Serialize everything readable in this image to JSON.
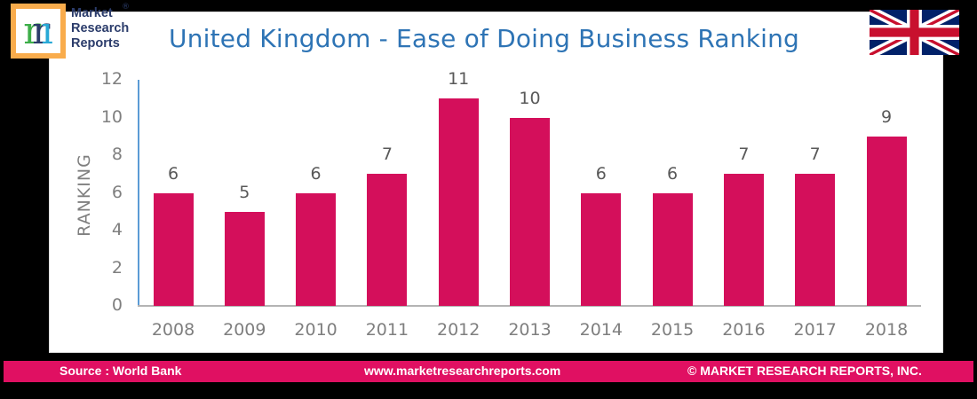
{
  "logo": {
    "letter": "m",
    "line1": "Market",
    "line2": "Research",
    "line3": "Reports",
    "registered": "®"
  },
  "title": "United Kingdom - Ease of Doing Business Ranking",
  "footer": {
    "source": "Source : World Bank",
    "url": "www.marketresearchreports.com",
    "copyright": "© MARKET RESEARCH REPORTS, INC."
  },
  "colors": {
    "bar": "#d40f5b",
    "title": "#2e74b5",
    "footer": "#e01062",
    "y_axis": "#5b9bd5"
  },
  "chart_data": {
    "type": "bar",
    "title": "United Kingdom - Ease of Doing Business Ranking",
    "xlabel": "",
    "ylabel": "RANKING",
    "categories": [
      "2008",
      "2009",
      "2010",
      "2011",
      "2012",
      "2013",
      "2014",
      "2015",
      "2016",
      "2017",
      "2018"
    ],
    "values": [
      6,
      5,
      6,
      7,
      11,
      10,
      6,
      6,
      7,
      7,
      9
    ],
    "yticks": [
      "0",
      "2",
      "4",
      "6",
      "8",
      "10",
      "12"
    ],
    "ylim": [
      0,
      12
    ],
    "grid": false,
    "legend": "none",
    "data_labels": true
  }
}
